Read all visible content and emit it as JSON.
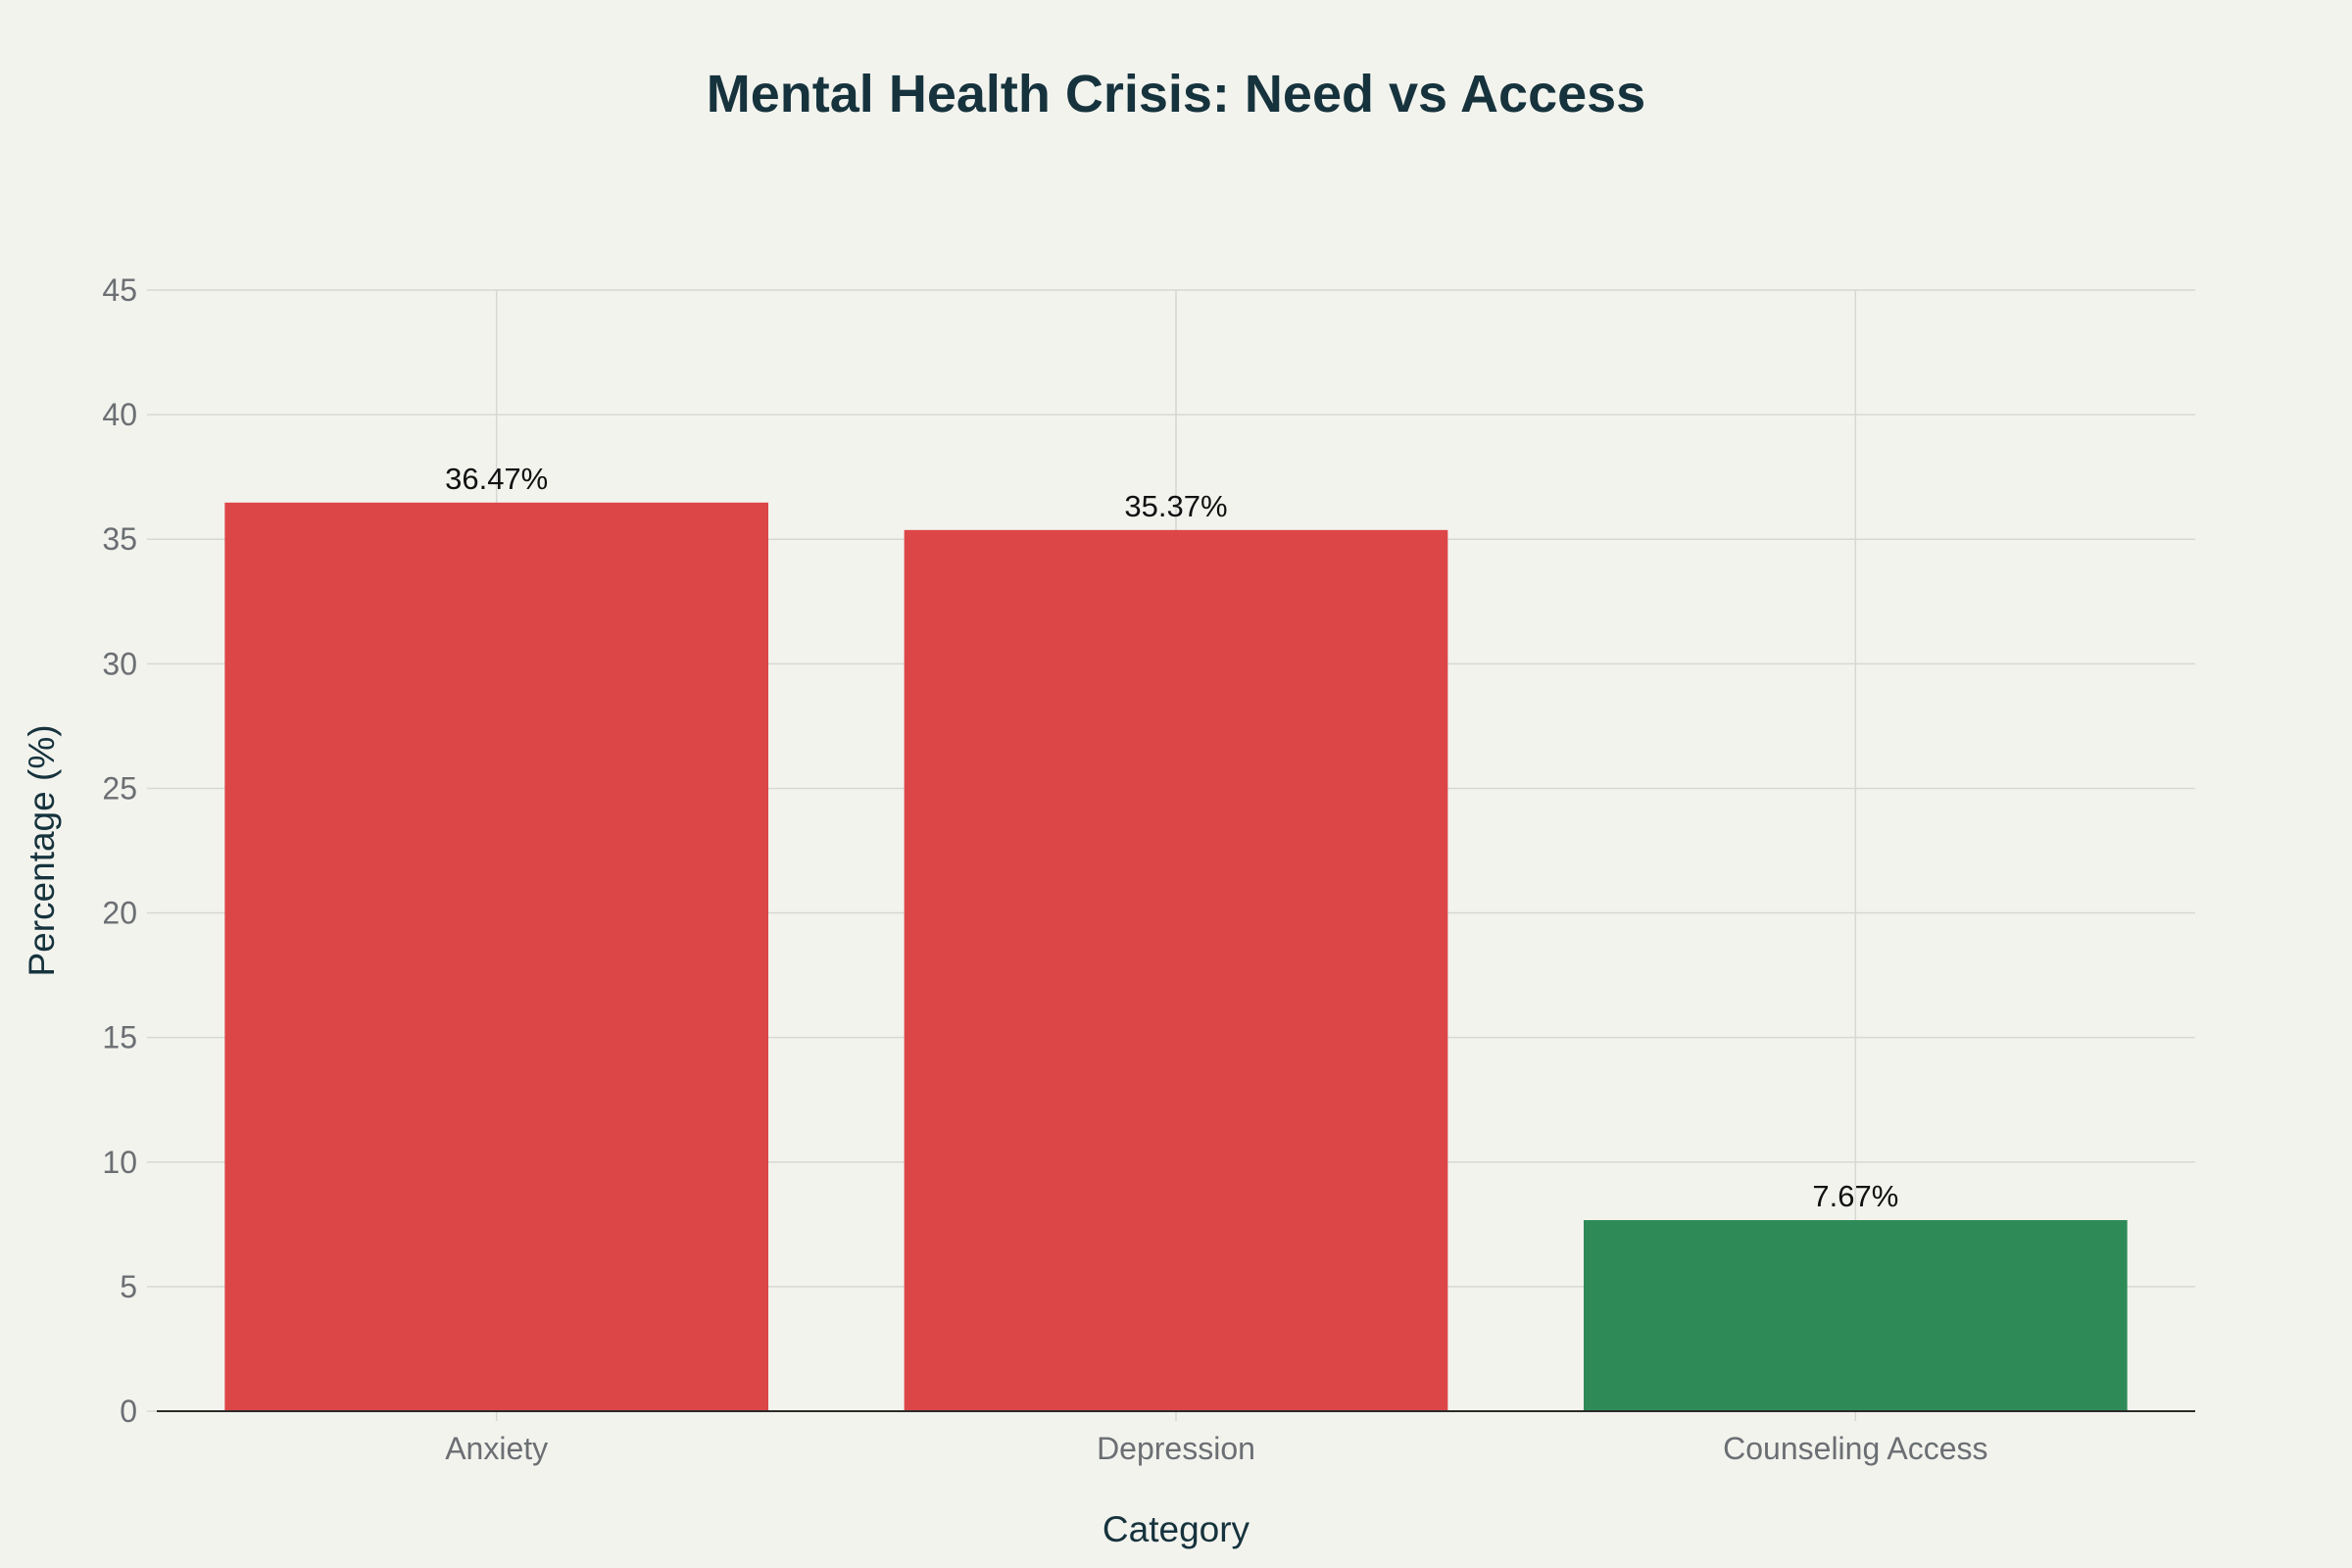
{
  "chart_data": {
    "type": "bar",
    "title": "Mental Health Crisis: Need vs Access",
    "xlabel": "Category",
    "ylabel": "Percentage (%)",
    "categories": [
      "Anxiety",
      "Depression",
      "Counseling Access"
    ],
    "values": [
      36.47,
      35.37,
      7.67
    ],
    "data_labels": [
      "36.47%",
      "35.37%",
      "7.67%"
    ],
    "colors": [
      "#dc4647",
      "#dc4647",
      "#2e8b57"
    ],
    "ylim": [
      0,
      45
    ],
    "yticks": [
      0,
      5,
      10,
      15,
      20,
      25,
      30,
      35,
      40,
      45
    ],
    "grid": true,
    "legend": "none"
  },
  "theme": {
    "background": "#f3f3ee",
    "grid_color": "#d6d8d4",
    "axis_color": "#2b2b2b",
    "title_color": "#16333d"
  }
}
